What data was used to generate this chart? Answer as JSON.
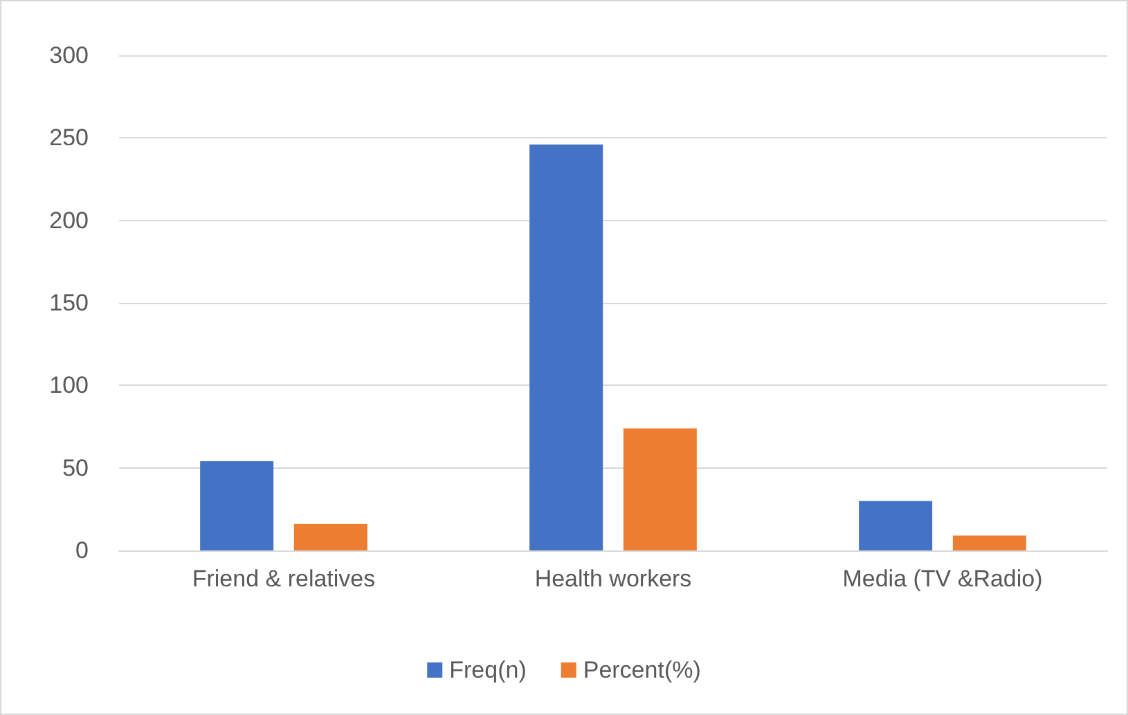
{
  "chart_data": {
    "type": "bar",
    "categories": [
      "Friend & relatives",
      "Health workers",
      "Media (TV &Radio)"
    ],
    "series": [
      {
        "name": "Freq(n)",
        "color": "#4472c4",
        "values": [
          54,
          246,
          30
        ]
      },
      {
        "name": "Percent(%)",
        "color": "#ed7d31",
        "values": [
          16,
          74,
          9
        ]
      }
    ],
    "ylim": [
      0,
      300
    ],
    "yticks": [
      0,
      50,
      100,
      150,
      200,
      250,
      300
    ],
    "grid": "y",
    "legend": "bottom"
  }
}
